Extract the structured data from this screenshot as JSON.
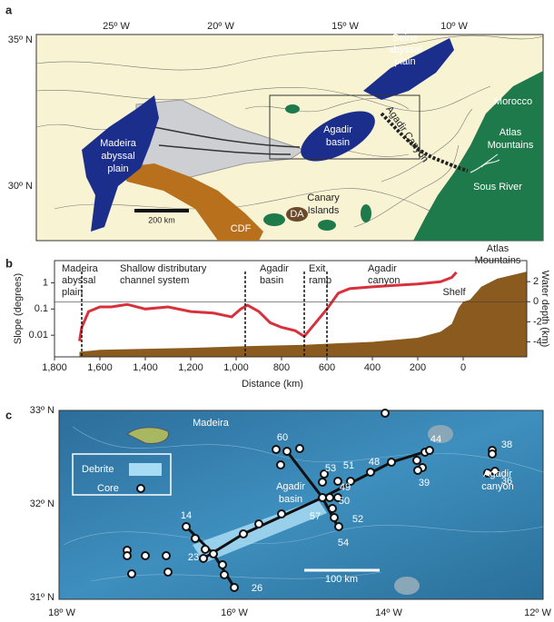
{
  "panel_a": {
    "letter": "a",
    "lon_ticks": [
      "25º W",
      "20º W",
      "15º W",
      "10º W"
    ],
    "lat_ticks": [
      "35º N",
      "30º N"
    ],
    "seine": [
      "Seine",
      "abyssal",
      "plain"
    ],
    "morocco": "Morocco",
    "agadir_basin": [
      "Agadir",
      "basin"
    ],
    "madeira": [
      "Madeira",
      "abyssal",
      "plain"
    ],
    "atlas": [
      "Atlas",
      "Mountains"
    ],
    "sous": "Sous River",
    "agadir_canyon": "Agadir Canyon",
    "canary": [
      "Canary",
      "Islands"
    ],
    "cdf": "CDF",
    "da": "DA",
    "scale": "200 km"
  },
  "chart_data": {
    "type": "line",
    "letter": "b",
    "x_label": "Distance (km)",
    "y_label": "Slope (degrees)",
    "y2_label": "Water depth (km)",
    "xlim": [
      1800,
      -280
    ],
    "xticks": [
      {
        "value": 1800,
        "label": "1,800"
      },
      {
        "value": 1600,
        "label": "1,600"
      },
      {
        "value": 1400,
        "label": "1,400"
      },
      {
        "value": 1200,
        "label": "1,200"
      },
      {
        "value": 1000,
        "label": "1,000"
      },
      800,
      600,
      400,
      200,
      0
    ],
    "ylog": true,
    "ylim": [
      0.0015,
      7
    ],
    "yticks": [
      0.01,
      0.1,
      1
    ],
    "y2lim": [
      -5.5,
      4.1
    ],
    "y2ticks": [
      2,
      0,
      -2,
      -4
    ],
    "y2_refline": 0,
    "markers": [
      1680,
      960,
      700,
      600
    ],
    "annotations": [
      [
        "Madeira",
        "abyssal",
        "plain"
      ],
      [
        "Shallow distributary",
        "channel system"
      ],
      [
        "Agadir",
        "basin"
      ],
      [
        "Exit",
        "ramp"
      ],
      [
        "Agadir",
        "canyon"
      ],
      [
        "Atlas",
        "Mountains"
      ],
      [
        "Shelf"
      ]
    ],
    "series": [
      {
        "color": "#d7323c",
        "x": [
          1690,
          1680,
          1650,
          1600,
          1550,
          1480,
          1400,
          1300,
          1200,
          1100,
          1020,
          980,
          950,
          900,
          850,
          800,
          740,
          700,
          650,
          600,
          550,
          500,
          400,
          300,
          200,
          100,
          50,
          30
        ],
        "values": [
          0.006,
          0.02,
          0.08,
          0.12,
          0.12,
          0.15,
          0.1,
          0.12,
          0.08,
          0.07,
          0.05,
          0.1,
          0.14,
          0.08,
          0.03,
          0.02,
          0.015,
          0.009,
          0.03,
          0.1,
          0.4,
          0.6,
          0.7,
          0.8,
          0.9,
          1.1,
          1.6,
          2.5
        ]
      },
      {
        "color": "#8b5a1e",
        "axis": "y2",
        "type": "area",
        "x": [
          1690,
          1600,
          1200,
          900,
          700,
          400,
          200,
          100,
          50,
          20,
          0,
          -30,
          -80,
          -150,
          -280
        ],
        "values": [
          -5,
          -4.8,
          -4.6,
          -4.4,
          -4.3,
          -4.0,
          -3.6,
          -3,
          -2.2,
          -0.6,
          0,
          0.2,
          1.5,
          2.3,
          3
        ]
      }
    ]
  },
  "panel_c": {
    "letter": "c",
    "lat_ticks": [
      "33º N",
      "32º N",
      "31º N"
    ],
    "lon_ticks": [
      "18º W",
      "16º W",
      "14º W",
      "12º W"
    ],
    "madeira": "Madeira",
    "legend_debrite": "Debrite",
    "legend_core": "Core",
    "agadir_basin": [
      "Agadir",
      "basin"
    ],
    "agadir_canyon": [
      "Agadir",
      "canyon"
    ],
    "scale": "100 km",
    "cores": [
      "60",
      "53",
      "51",
      "48",
      "44",
      "38",
      "49",
      "50",
      "52",
      "57",
      "54",
      "39",
      "36",
      "14",
      "23",
      "26"
    ]
  }
}
